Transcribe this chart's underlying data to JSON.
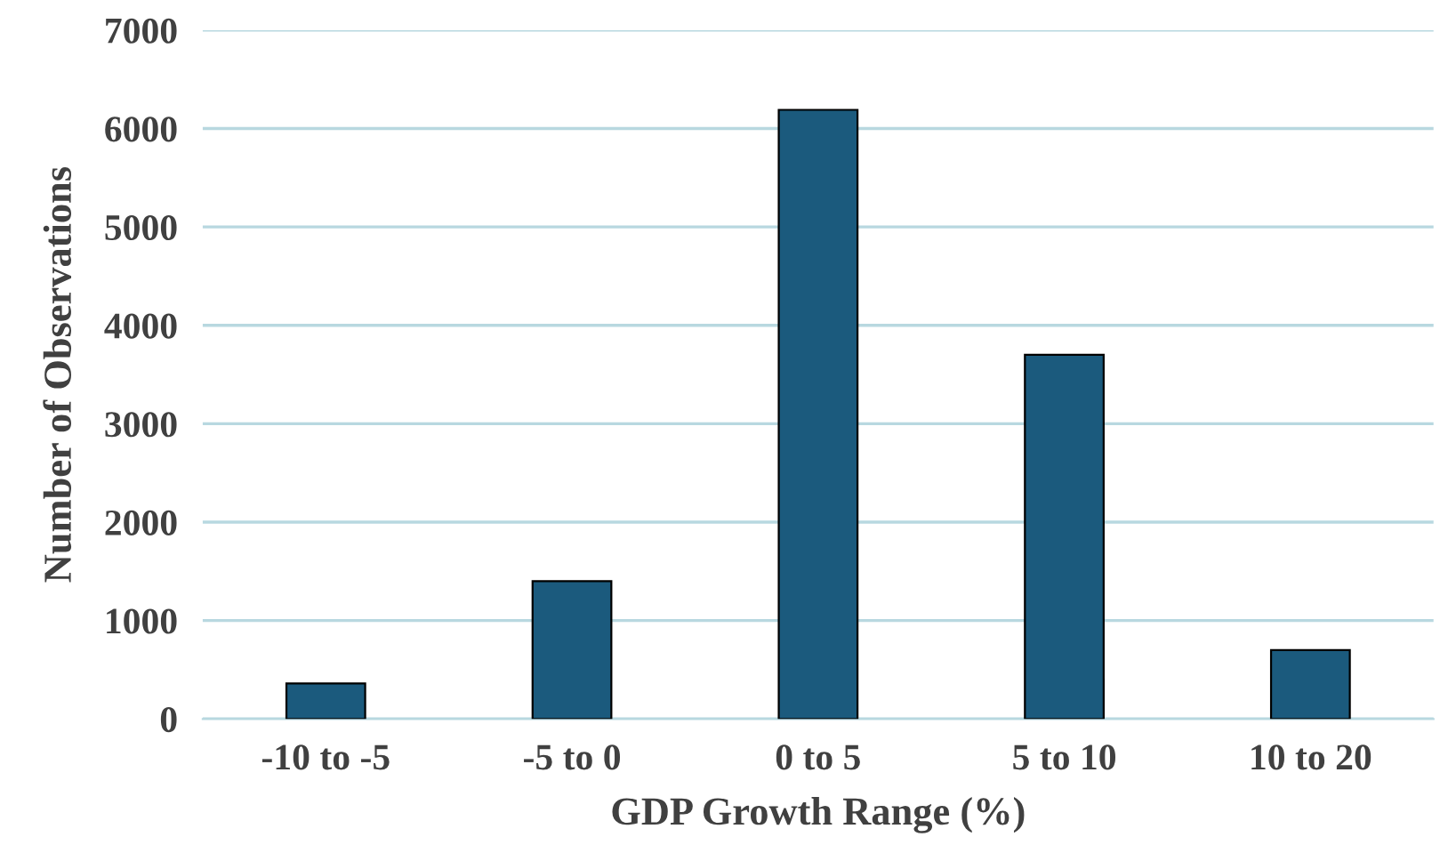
{
  "chart_data": {
    "type": "bar",
    "xlabel": "GDP Growth Range (%)",
    "ylabel": "Number of Observations",
    "categories": [
      "-10 to -5",
      "-5 to 0",
      "0 to 5",
      "5 to 10",
      "10 to 20"
    ],
    "values": [
      360,
      1400,
      6190,
      3700,
      700
    ],
    "color": "#1b5a7d",
    "ylim": [
      0,
      7000
    ],
    "yticks": [
      0,
      1000,
      2000,
      3000,
      4000,
      5000,
      6000,
      7000
    ],
    "grid": "y"
  }
}
